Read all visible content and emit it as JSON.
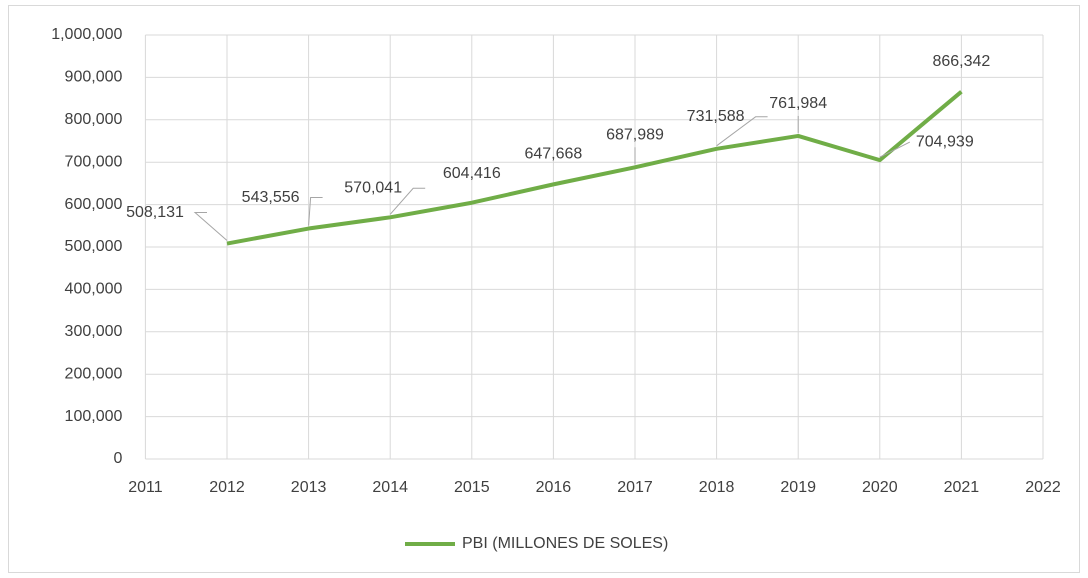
{
  "chart_data": {
    "type": "line",
    "x": [
      2012,
      2013,
      2014,
      2015,
      2016,
      2017,
      2018,
      2019,
      2020,
      2021
    ],
    "series": [
      {
        "name": "PBI (MILLONES DE SOLES)",
        "color": "#70ad47",
        "values": [
          508131,
          543556,
          570041,
          604416,
          647668,
          687989,
          731588,
          761984,
          704939,
          866342
        ],
        "value_labels": [
          "508,131",
          "543,556",
          "570,041",
          "604,416",
          "647,668",
          "687,989",
          "731,588",
          "761,984",
          "704,939",
          "866,342"
        ]
      }
    ],
    "xlim": [
      2011,
      2022
    ],
    "xticks": [
      2011,
      2012,
      2013,
      2014,
      2015,
      2016,
      2017,
      2018,
      2019,
      2020,
      2021,
      2022
    ],
    "ylim": [
      0,
      1000000
    ],
    "yticks": [
      0,
      {
        "value": 100000,
        "label": "100,000"
      },
      {
        "value": 200000,
        "label": "200,000"
      },
      {
        "value": 300000,
        "label": "300,000"
      },
      {
        "value": 400000,
        "label": "400,000"
      },
      {
        "value": 500000,
        "label": "500,000"
      },
      {
        "value": 600000,
        "label": "600,000"
      },
      {
        "value": 700000,
        "label": "700,000"
      },
      {
        "value": 800000,
        "label": "800,000"
      },
      {
        "value": 900000,
        "label": "900,000"
      },
      {
        "value": 1000000,
        "label": "1,000,000"
      }
    ],
    "grid": true,
    "legend": "bottom"
  }
}
